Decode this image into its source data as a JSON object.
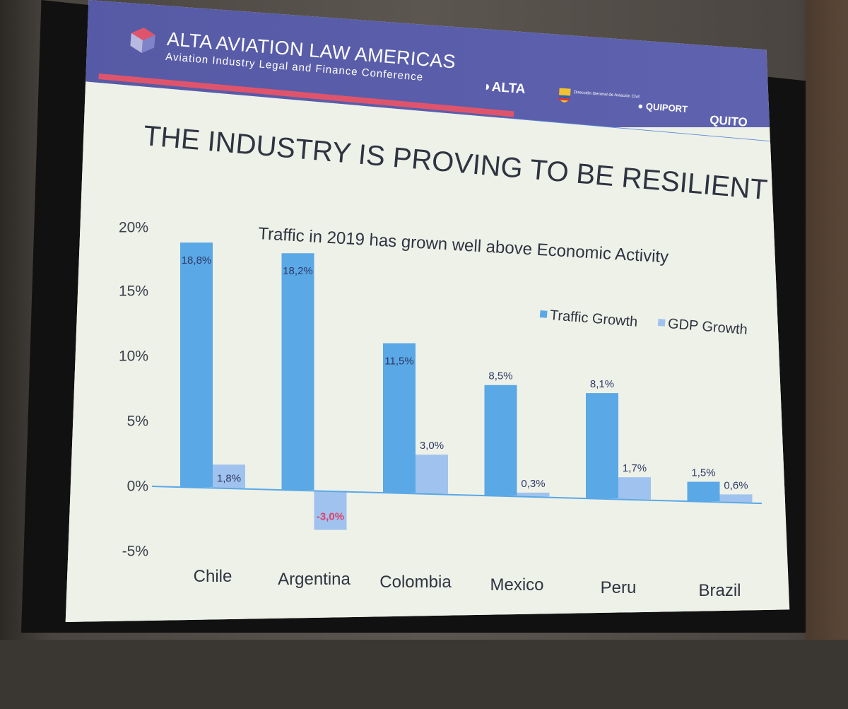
{
  "banner": {
    "brand_title": "ALTA AVIATION LAW AMERICAS",
    "brand_subtitle": "Aviation Industry Legal and Finance Conference",
    "sponsors": {
      "alta": "ALTA",
      "dgac": "Dirección General de Aviación Civil",
      "quiport": "QUIPORT",
      "quito": "QUITO"
    },
    "colors": {
      "banner": "#5b5fab",
      "red_strip": "#e0546b",
      "blue_strip": "#5b8ad6"
    }
  },
  "slide": {
    "headline": "THE INDUSTRY IS PROVING TO BE RESILIENT"
  },
  "chart_data": {
    "type": "bar",
    "title": "Traffic in 2019 has grown well above Economic Activity",
    "categories": [
      "Chile",
      "Argentina",
      "Colombia",
      "Mexico",
      "Peru",
      "Brazil"
    ],
    "series": [
      {
        "name": "Traffic Growth",
        "values": [
          18.8,
          18.2,
          11.5,
          8.5,
          8.1,
          1.5
        ],
        "labels": [
          "18,8%",
          "18,2%",
          "11,5%",
          "8,5%",
          "8,1%",
          "1,5%"
        ],
        "color": "#5aa8e6"
      },
      {
        "name": "GDP Growth",
        "values": [
          1.8,
          -3.0,
          3.0,
          0.3,
          1.7,
          0.6
        ],
        "labels": [
          "1,8%",
          "-3,0%",
          "3,0%",
          "0,3%",
          "1,7%",
          "0,6%"
        ],
        "color": "#9fc3ee"
      }
    ],
    "yticks": [
      "20%",
      "15%",
      "10%",
      "5%",
      "0%",
      "-5%"
    ],
    "ytick_values": [
      20,
      15,
      10,
      5,
      0,
      -5
    ],
    "ylim": [
      -5,
      20
    ],
    "negative_label_color": "#e0406a",
    "legend_position": "top-right",
    "grid": false
  }
}
